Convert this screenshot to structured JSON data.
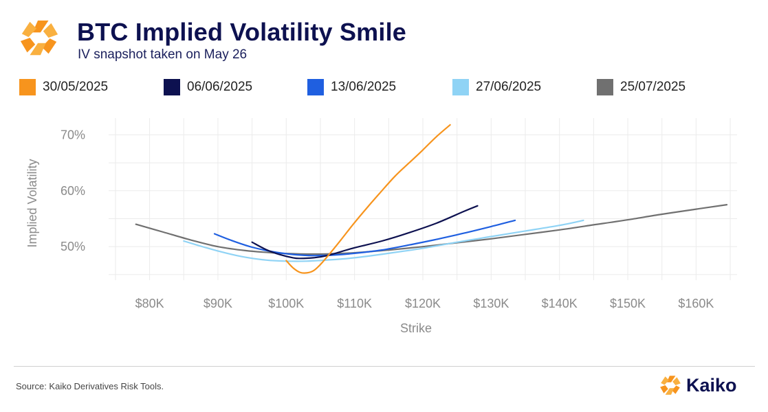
{
  "header": {
    "title": "BTC Implied Volatility Smile",
    "subtitle": "IV snapshot taken on May 26"
  },
  "footer": {
    "source": "Source: Kaiko Derivatives Risk Tools.",
    "brand": "Kaiko"
  },
  "colors": {
    "accent": "#f7941d",
    "title": "#0d1150",
    "grid": "#ebebeb"
  },
  "icons": {
    "logo": "kaiko-logo-icon"
  },
  "chart_data": {
    "type": "line",
    "xlabel": "Strike",
    "ylabel": "Implied Volatility",
    "xlim": [
      74000,
      166000
    ],
    "ylim": [
      44,
      73
    ],
    "x_ticks": [
      80000,
      90000,
      100000,
      110000,
      120000,
      130000,
      140000,
      150000,
      160000
    ],
    "x_tick_labels": [
      "$80K",
      "$90K",
      "$100K",
      "$110K",
      "$120K",
      "$130K",
      "$140K",
      "$150K",
      "$160K"
    ],
    "y_ticks": [
      50,
      60,
      70
    ],
    "y_tick_labels": [
      "50%",
      "60%",
      "70%"
    ],
    "grid": true,
    "legend_position": "top",
    "series": [
      {
        "name": "30/05/2025",
        "color": "#f7941d",
        "x": [
          100000,
          101000,
          102000,
          103000,
          104000,
          105000,
          106000,
          108000,
          110000,
          112000,
          114000,
          116000,
          118000,
          120000,
          122000,
          124000
        ],
        "y": [
          47.5,
          46.2,
          45.4,
          45.3,
          45.7,
          46.8,
          48.2,
          51.2,
          54.3,
          57.2,
          60.0,
          62.7,
          65.0,
          67.3,
          69.7,
          71.8
        ]
      },
      {
        "name": "06/06/2025",
        "color": "#0d1150",
        "x": [
          95000,
          97000,
          99000,
          101000,
          102000,
          104000,
          106000,
          110000,
          114000,
          118000,
          122000,
          126000,
          128000
        ],
        "y": [
          50.8,
          49.5,
          48.6,
          48.0,
          47.9,
          48.0,
          48.4,
          49.8,
          51.0,
          52.5,
          54.2,
          56.3,
          57.3
        ]
      },
      {
        "name": "13/06/2025",
        "color": "#1f5fe0",
        "x": [
          89500,
          92000,
          95000,
          98000,
          101000,
          104000,
          107000,
          110000,
          114000,
          118000,
          122000,
          126000,
          130000,
          133500
        ],
        "y": [
          52.3,
          51.1,
          49.9,
          49.1,
          48.6,
          48.4,
          48.5,
          48.8,
          49.4,
          50.3,
          51.3,
          52.4,
          53.6,
          54.7
        ]
      },
      {
        "name": "27/06/2025",
        "color": "#8fd3f5",
        "x": [
          85000,
          88000,
          91000,
          94000,
          97000,
          100000,
          103000,
          106000,
          110000,
          115000,
          120000,
          125000,
          130000,
          135000,
          140000,
          143500
        ],
        "y": [
          51.0,
          49.9,
          48.9,
          48.1,
          47.6,
          47.4,
          47.4,
          47.6,
          48.0,
          48.8,
          49.7,
          50.8,
          51.8,
          52.8,
          53.8,
          54.7
        ]
      },
      {
        "name": "25/07/2025",
        "color": "#707070",
        "x": [
          78000,
          82000,
          86000,
          90000,
          94000,
          98000,
          102000,
          106000,
          110000,
          115000,
          120000,
          125000,
          130000,
          135000,
          140000,
          145000,
          150000,
          155000,
          160000,
          164500
        ],
        "y": [
          54.0,
          52.6,
          51.2,
          50.0,
          49.3,
          48.9,
          48.7,
          48.7,
          48.9,
          49.4,
          50.0,
          50.7,
          51.4,
          52.2,
          53.0,
          53.9,
          54.8,
          55.8,
          56.7,
          57.5
        ]
      }
    ]
  }
}
